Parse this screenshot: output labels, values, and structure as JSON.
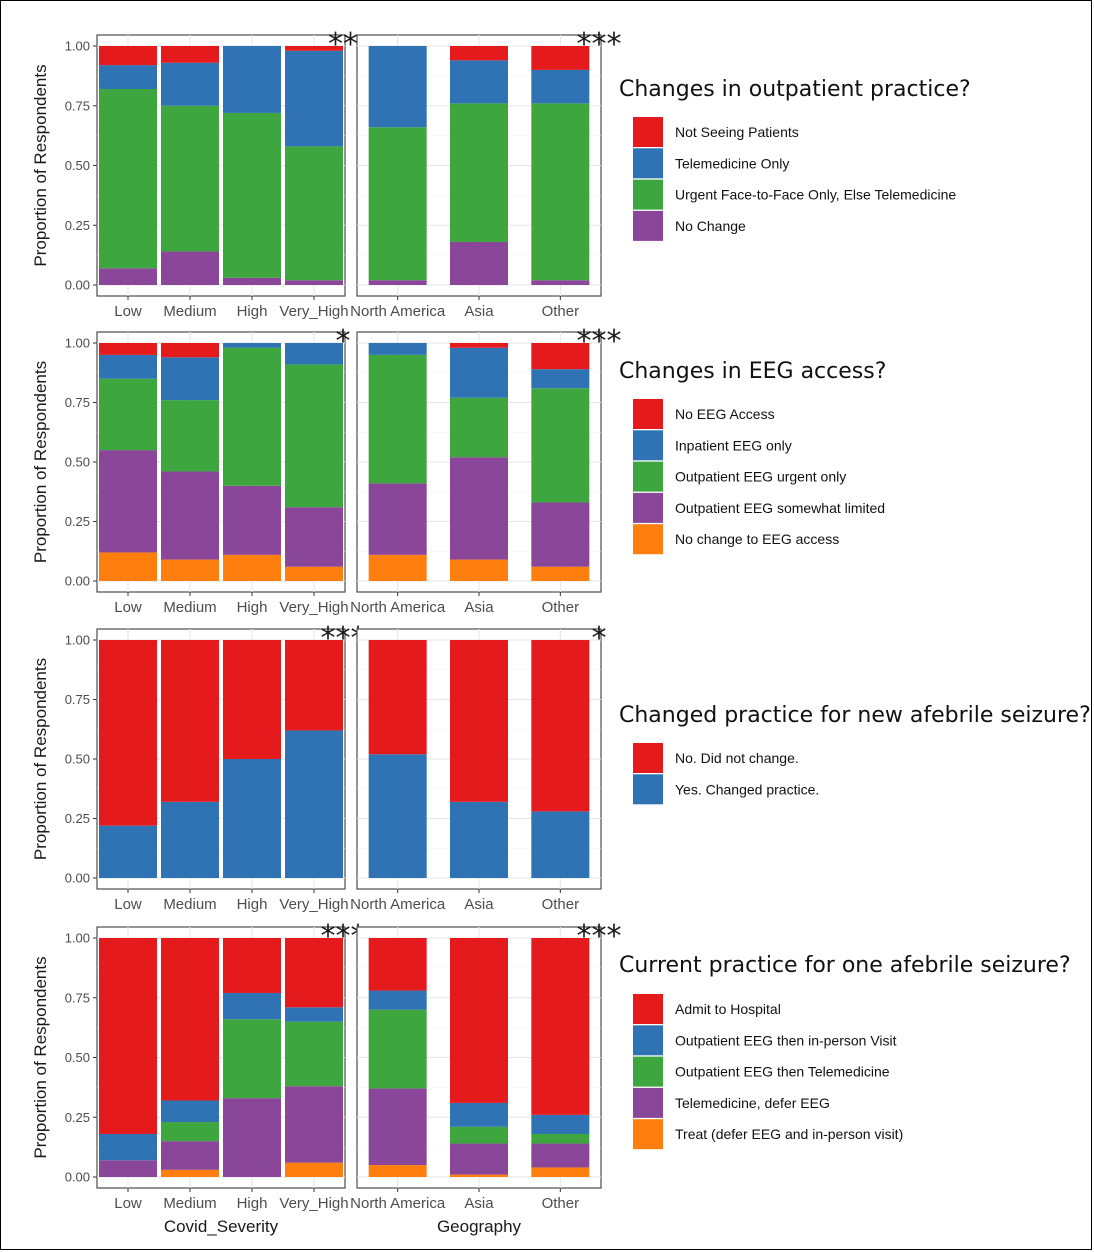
{
  "colors": {
    "red": "#e41a1c",
    "blue": "#2f73b4",
    "green": "#3ea63f",
    "purple": "#8a479a",
    "orange": "#ff7f0e"
  },
  "y_tick_labels": [
    "0.00",
    "0.25",
    "0.50",
    "0.75",
    "1.00"
  ],
  "y_axis_title": "Proportion of Respondents",
  "x_axis_titles": [
    "Covid_Severity",
    "Geography"
  ],
  "chart_data": [
    {
      "type": "bar",
      "stacked": true,
      "legend_title": "Changes in outpatient practice?",
      "ylabel": "Proportion of Respondents",
      "ylim": [
        0,
        1
      ],
      "legend_position": "right",
      "panels": [
        {
          "categories": [
            "Low",
            "Medium",
            "High",
            "Very_High"
          ],
          "significance": "**",
          "series": [
            {
              "name": "No Change",
              "color": "purple",
              "values": [
                0.07,
                0.14,
                0.03,
                0.02
              ]
            },
            {
              "name": "Urgent Face-to-Face Only, Else Telemedicine",
              "color": "green",
              "values": [
                0.75,
                0.61,
                0.69,
                0.56
              ]
            },
            {
              "name": "Telemedicine Only",
              "color": "blue",
              "values": [
                0.1,
                0.18,
                0.28,
                0.4
              ]
            },
            {
              "name": "Not Seeing Patients",
              "color": "red",
              "values": [
                0.08,
                0.07,
                0.0,
                0.02
              ]
            }
          ]
        },
        {
          "categories": [
            "North America",
            "Asia",
            "Other"
          ],
          "significance": "***",
          "series": [
            {
              "name": "No Change",
              "color": "purple",
              "values": [
                0.02,
                0.18,
                0.02
              ]
            },
            {
              "name": "Urgent Face-to-Face Only, Else Telemedicine",
              "color": "green",
              "values": [
                0.64,
                0.58,
                0.74
              ]
            },
            {
              "name": "Telemedicine Only",
              "color": "blue",
              "values": [
                0.34,
                0.18,
                0.14
              ]
            },
            {
              "name": "Not Seeing Patients",
              "color": "red",
              "values": [
                0.0,
                0.06,
                0.1
              ]
            }
          ]
        }
      ],
      "legend": [
        {
          "label": "Not Seeing Patients",
          "color": "red"
        },
        {
          "label": "Telemedicine Only",
          "color": "blue"
        },
        {
          "label": "Urgent Face-to-Face Only, Else Telemedicine",
          "color": "green"
        },
        {
          "label": "No Change",
          "color": "purple"
        }
      ]
    },
    {
      "type": "bar",
      "stacked": true,
      "legend_title": "Changes in EEG access?",
      "ylabel": "Proportion of Respondents",
      "ylim": [
        0,
        1
      ],
      "legend_position": "right",
      "panels": [
        {
          "categories": [
            "Low",
            "Medium",
            "High",
            "Very_High"
          ],
          "significance": "*",
          "series": [
            {
              "name": "No change to EEG access",
              "color": "orange",
              "values": [
                0.12,
                0.09,
                0.11,
                0.06
              ]
            },
            {
              "name": "Outpatient EEG somewhat limited",
              "color": "purple",
              "values": [
                0.43,
                0.37,
                0.29,
                0.25
              ]
            },
            {
              "name": "Outpatient EEG urgent only",
              "color": "green",
              "values": [
                0.3,
                0.3,
                0.58,
                0.6
              ]
            },
            {
              "name": "Inpatient EEG only",
              "color": "blue",
              "values": [
                0.1,
                0.18,
                0.02,
                0.09
              ]
            },
            {
              "name": "No EEG Access",
              "color": "red",
              "values": [
                0.05,
                0.06,
                0.0,
                0.0
              ]
            }
          ]
        },
        {
          "categories": [
            "North America",
            "Asia",
            "Other"
          ],
          "significance": "***",
          "series": [
            {
              "name": "No change to EEG access",
              "color": "orange",
              "values": [
                0.11,
                0.09,
                0.06
              ]
            },
            {
              "name": "Outpatient EEG somewhat limited",
              "color": "purple",
              "values": [
                0.3,
                0.43,
                0.27
              ]
            },
            {
              "name": "Outpatient EEG urgent only",
              "color": "green",
              "values": [
                0.54,
                0.25,
                0.48
              ]
            },
            {
              "name": "Inpatient EEG only",
              "color": "blue",
              "values": [
                0.05,
                0.21,
                0.08
              ]
            },
            {
              "name": "No EEG Access",
              "color": "red",
              "values": [
                0.0,
                0.02,
                0.11
              ]
            }
          ]
        }
      ],
      "legend": [
        {
          "label": "No EEG Access",
          "color": "red"
        },
        {
          "label": "Inpatient EEG only",
          "color": "blue"
        },
        {
          "label": "Outpatient EEG urgent only",
          "color": "green"
        },
        {
          "label": "Outpatient EEG somewhat limited",
          "color": "purple"
        },
        {
          "label": "No change to EEG access",
          "color": "orange"
        }
      ]
    },
    {
      "type": "bar",
      "stacked": true,
      "legend_title": "Changed practice for new afebrile seizure?",
      "ylabel": "Proportion of Respondents",
      "ylim": [
        0,
        1
      ],
      "legend_position": "right",
      "panels": [
        {
          "categories": [
            "Low",
            "Medium",
            "High",
            "Very_High"
          ],
          "significance": "***",
          "series": [
            {
              "name": "Yes. Changed practice.",
              "color": "blue",
              "values": [
                0.22,
                0.32,
                0.5,
                0.62
              ]
            },
            {
              "name": "No. Did not change.",
              "color": "red",
              "values": [
                0.78,
                0.68,
                0.5,
                0.38
              ]
            }
          ]
        },
        {
          "categories": [
            "North America",
            "Asia",
            "Other"
          ],
          "significance": "*",
          "series": [
            {
              "name": "Yes. Changed practice.",
              "color": "blue",
              "values": [
                0.52,
                0.32,
                0.28
              ]
            },
            {
              "name": "No. Did not change.",
              "color": "red",
              "values": [
                0.48,
                0.68,
                0.72
              ]
            }
          ]
        }
      ],
      "legend": [
        {
          "label": "No. Did not change.",
          "color": "red"
        },
        {
          "label": "Yes. Changed practice.",
          "color": "blue"
        }
      ]
    },
    {
      "type": "bar",
      "stacked": true,
      "legend_title": "Current practice for one afebrile seizure?",
      "ylabel": "Proportion of Respondents",
      "ylim": [
        0,
        1
      ],
      "legend_position": "right",
      "panels": [
        {
          "categories": [
            "Low",
            "Medium",
            "High",
            "Very_High"
          ],
          "significance": "***",
          "xlabel": "Covid_Severity",
          "series": [
            {
              "name": "Treat (defer EEG and in-person visit)",
              "color": "orange",
              "values": [
                0.0,
                0.03,
                0.0,
                0.06
              ]
            },
            {
              "name": "Telemedicine, defer EEG",
              "color": "purple",
              "values": [
                0.07,
                0.12,
                0.33,
                0.32
              ]
            },
            {
              "name": "Outpatient EEG then Telemedicine",
              "color": "green",
              "values": [
                0.0,
                0.08,
                0.33,
                0.27
              ]
            },
            {
              "name": "Outpatient EEG then in-person Visit",
              "color": "blue",
              "values": [
                0.11,
                0.09,
                0.11,
                0.06
              ]
            },
            {
              "name": "Admit to Hospital",
              "color": "red",
              "values": [
                0.82,
                0.68,
                0.23,
                0.29
              ]
            }
          ]
        },
        {
          "categories": [
            "North America",
            "Asia",
            "Other"
          ],
          "significance": "***",
          "xlabel": "Geography",
          "series": [
            {
              "name": "Treat (defer EEG and in-person visit)",
              "color": "orange",
              "values": [
                0.05,
                0.01,
                0.04
              ]
            },
            {
              "name": "Telemedicine, defer EEG",
              "color": "purple",
              "values": [
                0.32,
                0.13,
                0.1
              ]
            },
            {
              "name": "Outpatient EEG then Telemedicine",
              "color": "green",
              "values": [
                0.33,
                0.07,
                0.04
              ]
            },
            {
              "name": "Outpatient EEG then in-person Visit",
              "color": "blue",
              "values": [
                0.08,
                0.1,
                0.08
              ]
            },
            {
              "name": "Admit to Hospital",
              "color": "red",
              "values": [
                0.22,
                0.69,
                0.74
              ]
            }
          ]
        }
      ],
      "legend": [
        {
          "label": "Admit to Hospital",
          "color": "red"
        },
        {
          "label": "Outpatient EEG then in-person Visit",
          "color": "blue"
        },
        {
          "label": "Outpatient EEG then Telemedicine",
          "color": "green"
        },
        {
          "label": "Telemedicine, defer EEG",
          "color": "purple"
        },
        {
          "label": "Treat (defer EEG and in-person visit)",
          "color": "orange"
        }
      ]
    }
  ]
}
